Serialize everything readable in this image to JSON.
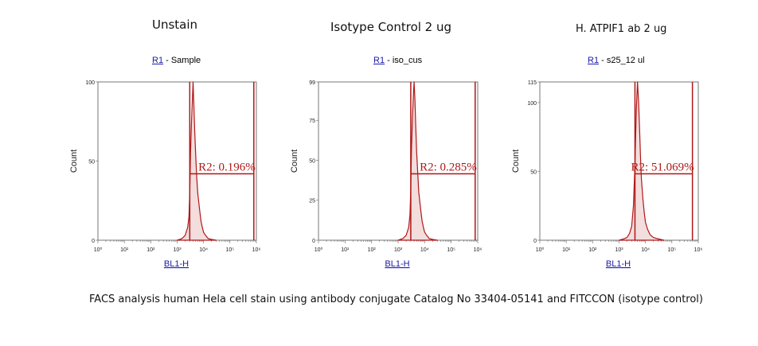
{
  "caption": "FACS analysis human Hela cell stain using antibody conjugate Catalog No 33404-05141 and FITCCON (isotype control)",
  "colors": {
    "histogram": "#b01818",
    "gate": "#b01818",
    "axis": "#777777",
    "link": "#1a1aa8"
  },
  "chart_data": [
    {
      "type": "area",
      "title": "Unstain",
      "region_link": "R1",
      "region_text": " - Sample",
      "xlabel": "BL1-H",
      "ylabel": "Count",
      "x_scale": "log",
      "xlim": [
        1,
        1000000
      ],
      "x_tick_labels": [
        "10⁰",
        "10¹",
        "10²",
        "10³",
        "10⁴",
        "10⁵",
        "10⁶"
      ],
      "ylim": [
        0,
        100
      ],
      "y_ticks": [
        0,
        50,
        100
      ],
      "gate": {
        "label": "R2: 0.196%",
        "from": 3000,
        "to": 800000
      },
      "x": [
        1000,
        1500,
        2000,
        2500,
        2800,
        3000,
        3200,
        3500,
        3800,
        4000,
        4300,
        4600,
        5000,
        5500,
        6000,
        7000,
        8000,
        9000,
        10000,
        12000,
        15000,
        20000,
        30000
      ],
      "values": [
        0,
        1,
        3,
        8,
        15,
        30,
        55,
        75,
        90,
        100,
        85,
        70,
        55,
        40,
        30,
        20,
        12,
        8,
        5,
        3,
        1,
        0.5,
        0
      ]
    },
    {
      "type": "area",
      "title": "Isotype Control 2 ug",
      "region_link": "R1",
      "region_text": " - iso_cus",
      "xlabel": "BL1-H",
      "ylabel": "Count",
      "x_scale": "log",
      "xlim": [
        1,
        1000000
      ],
      "x_tick_labels": [
        "10⁰",
        "10¹",
        "10²",
        "10³",
        "10⁴",
        "10⁵",
        "10⁶"
      ],
      "ylim": [
        0,
        99
      ],
      "y_ticks": [
        0,
        25,
        50,
        75,
        99
      ],
      "gate": {
        "label": "R2: 0.285%",
        "from": 3000,
        "to": 800000
      },
      "x": [
        1000,
        1500,
        2000,
        2500,
        2800,
        3000,
        3200,
        3500,
        3800,
        4000,
        4300,
        4600,
        5000,
        5500,
        6000,
        7000,
        8000,
        9000,
        10000,
        12000,
        15000,
        20000,
        30000
      ],
      "values": [
        0,
        1,
        3,
        8,
        16,
        32,
        58,
        78,
        92,
        99,
        88,
        72,
        55,
        42,
        30,
        20,
        12,
        8,
        5,
        3,
        1,
        0.5,
        0
      ]
    },
    {
      "type": "area",
      "title": "H. ATPIF1 ab 2 ug",
      "region_link": "R1",
      "region_text": " - s25_12 ul",
      "xlabel": "BL1-H",
      "ylabel": "Count",
      "x_scale": "log",
      "xlim": [
        1,
        1000000
      ],
      "x_tick_labels": [
        "10⁰",
        "10¹",
        "10²",
        "10³",
        "10⁴",
        "10⁵",
        "10⁶"
      ],
      "ylim": [
        0,
        115
      ],
      "y_ticks": [
        0,
        50,
        100,
        115
      ],
      "gate": {
        "label": "R2: 51.069%",
        "from": 4000,
        "to": 600000
      },
      "x": [
        1000,
        1500,
        2000,
        2500,
        3000,
        3500,
        4000,
        4500,
        5000,
        5500,
        6000,
        6500,
        7000,
        8000,
        9000,
        10000,
        12000,
        15000,
        20000,
        30000,
        50000
      ],
      "values": [
        0,
        1,
        2,
        5,
        10,
        25,
        55,
        95,
        115,
        100,
        80,
        60,
        45,
        30,
        20,
        13,
        8,
        4,
        2,
        1,
        0
      ]
    }
  ]
}
